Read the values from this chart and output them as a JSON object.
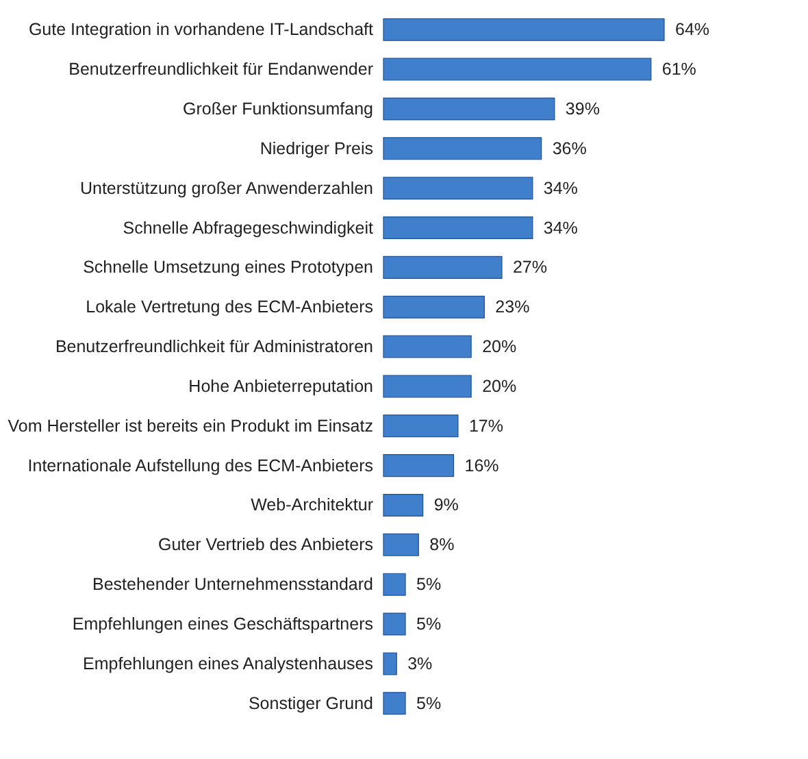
{
  "chart_data": {
    "type": "bar",
    "orientation": "horizontal",
    "data_labels": true,
    "categories": [
      "Gute Integration in vorhandene IT-Landschaft",
      "Benutzerfreundlichkeit für Endanwender",
      "Großer Funktionsumfang",
      "Niedriger Preis",
      "Unterstützung großer Anwenderzahlen",
      "Schnelle Abfragegeschwindigkeit",
      "Schnelle Umsetzung eines Prototypen",
      "Lokale Vertretung des ECM-Anbieters",
      "Benutzerfreundlichkeit für Administratoren",
      "Hohe Anbieterreputation",
      "Vom Hersteller ist bereits ein Produkt im Einsatz",
      "Internationale Aufstellung des ECM-Anbieters",
      "Web-Architektur",
      "Guter Vertrieb des Anbieters",
      "Bestehender Unternehmensstandard",
      "Empfehlungen eines Geschäftspartners",
      "Empfehlungen eines Analystenhauses",
      "Sonstiger Grund"
    ],
    "values": [
      64,
      61,
      39,
      36,
      34,
      34,
      27,
      23,
      20,
      20,
      17,
      16,
      9,
      8,
      5,
      5,
      3,
      5
    ],
    "value_labels": [
      "64%",
      "61%",
      "39%",
      "36%",
      "34%",
      "34%",
      "27%",
      "23%",
      "20%",
      "20%",
      "17%",
      "16%",
      "9%",
      "8%",
      "5%",
      "5%",
      "3%",
      "5%"
    ],
    "color": "#3f7fcc"
  }
}
